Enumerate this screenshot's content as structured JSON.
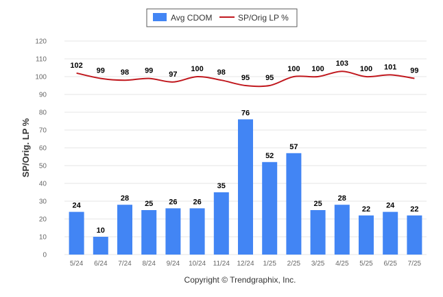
{
  "chart_data": {
    "type": "bar",
    "categories": [
      "5/24",
      "6/24",
      "7/24",
      "8/24",
      "9/24",
      "10/24",
      "11/24",
      "12/24",
      "1/25",
      "2/25",
      "3/25",
      "4/25",
      "5/25",
      "6/25",
      "7/25"
    ],
    "series": [
      {
        "name": "Avg CDOM",
        "type": "bar",
        "color": "#4285f4",
        "values": [
          24,
          10,
          28,
          25,
          26,
          26,
          35,
          76,
          52,
          57,
          25,
          28,
          22,
          24,
          22
        ]
      },
      {
        "name": "SP/Orig LP %",
        "type": "line",
        "color": "#c0171d",
        "values": [
          102,
          99,
          98,
          99,
          97,
          100,
          98,
          95,
          95,
          100,
          100,
          103,
          100,
          101,
          99
        ]
      }
    ],
    "ylabel": "SP/Orig. LP %",
    "ylim": [
      0,
      120
    ],
    "yticks": [
      0,
      10,
      20,
      30,
      40,
      50,
      60,
      70,
      80,
      90,
      100,
      110,
      120
    ],
    "grid": true,
    "legend_position": "top-center"
  },
  "footer": {
    "copyright": "Copyright © Trendgraphix, Inc."
  }
}
